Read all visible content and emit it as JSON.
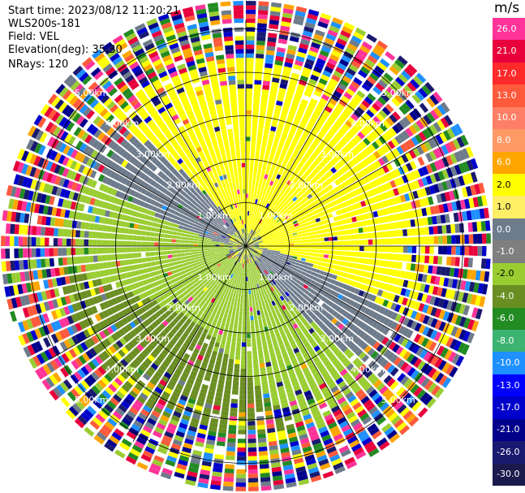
{
  "info": {
    "start_time": "Start time: 2023/08/12 11:20:21",
    "instrument": "WLS200s-181",
    "field": "Field: VEL",
    "elevation": "Elevation(deg): 35.30",
    "nrays": "NRays: 120"
  },
  "colorbar": {
    "unit": "m/s",
    "ticks": [
      "26.0",
      "21.0",
      "17.0",
      "13.0",
      "10.0",
      "8.0",
      "6.0",
      "2.0",
      "1.0",
      "0.0",
      "-1.0",
      "-2.0",
      "-4.0",
      "-6.0",
      "-8.0",
      "-10.0",
      "-13.0",
      "-17.0",
      "-21.0",
      "-26.0",
      "-30.0"
    ],
    "colors": [
      "#ff3399",
      "#e8003c",
      "#ff2a2a",
      "#ff5a3c",
      "#ff7f66",
      "#ff9966",
      "#ffa500",
      "#ffff00",
      "#ffee66",
      "#6e7b8b",
      "#7f7f7f",
      "#9acd32",
      "#6b8e23",
      "#228b22",
      "#3cb371",
      "#1e90ff",
      "#0000ff",
      "#0000cd",
      "#00008b",
      "#191970",
      "#1a1a4d"
    ]
  },
  "range_labels": [
    "1.00km",
    "2.00km",
    "3.00km",
    "4.00km",
    "5.00km"
  ],
  "chart_data": {
    "type": "ppi",
    "field": "VEL",
    "nrays": 120,
    "max_range_km": 5.5,
    "rings_km": [
      1,
      2,
      3,
      4,
      5
    ],
    "unit": "m/s"
  }
}
